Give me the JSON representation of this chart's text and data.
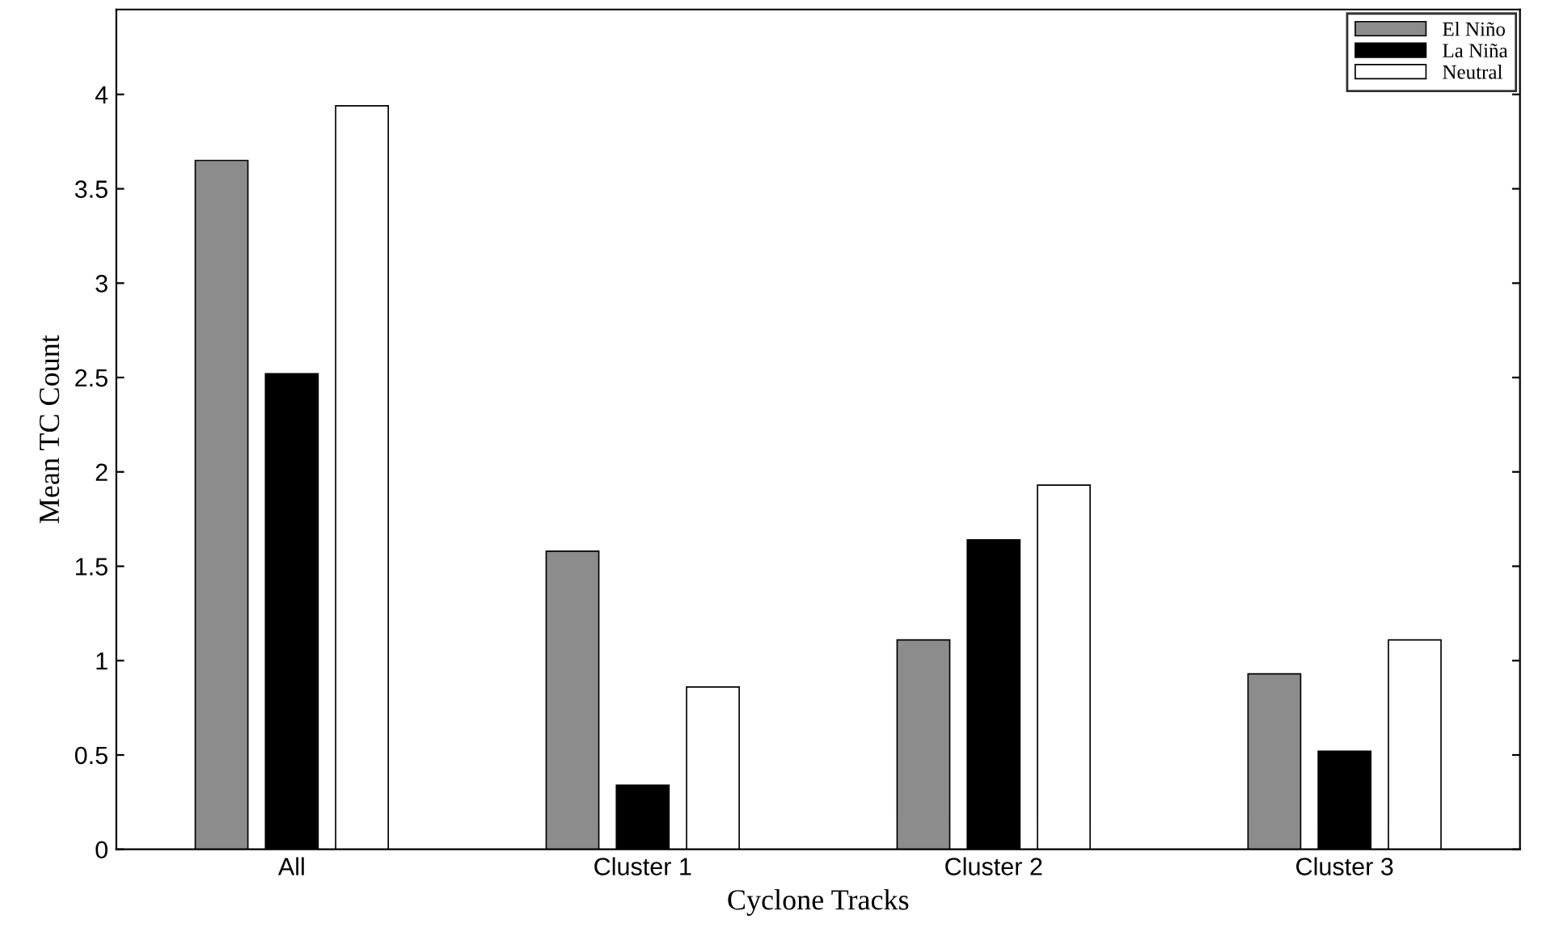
{
  "chart_data": {
    "type": "bar",
    "xlabel": "Cyclone Tracks",
    "ylabel": "Mean TC Count",
    "categories": [
      "All",
      "Cluster 1",
      "Cluster 2",
      "Cluster 3"
    ],
    "series": [
      {
        "name": "El Niño",
        "color": "#8c8c8c",
        "values": [
          3.65,
          1.58,
          1.11,
          0.93
        ]
      },
      {
        "name": "La Niña",
        "color": "#000000",
        "values": [
          2.52,
          0.34,
          1.64,
          0.52
        ]
      },
      {
        "name": "Neutral",
        "color": "#ffffff",
        "values": [
          3.94,
          0.86,
          1.93,
          1.11
        ]
      }
    ],
    "ylim": [
      0,
      4.45
    ],
    "yticks": [
      0,
      0.5,
      1,
      1.5,
      2,
      2.5,
      3,
      3.5,
      4
    ],
    "grid": false,
    "legend": "top right"
  }
}
